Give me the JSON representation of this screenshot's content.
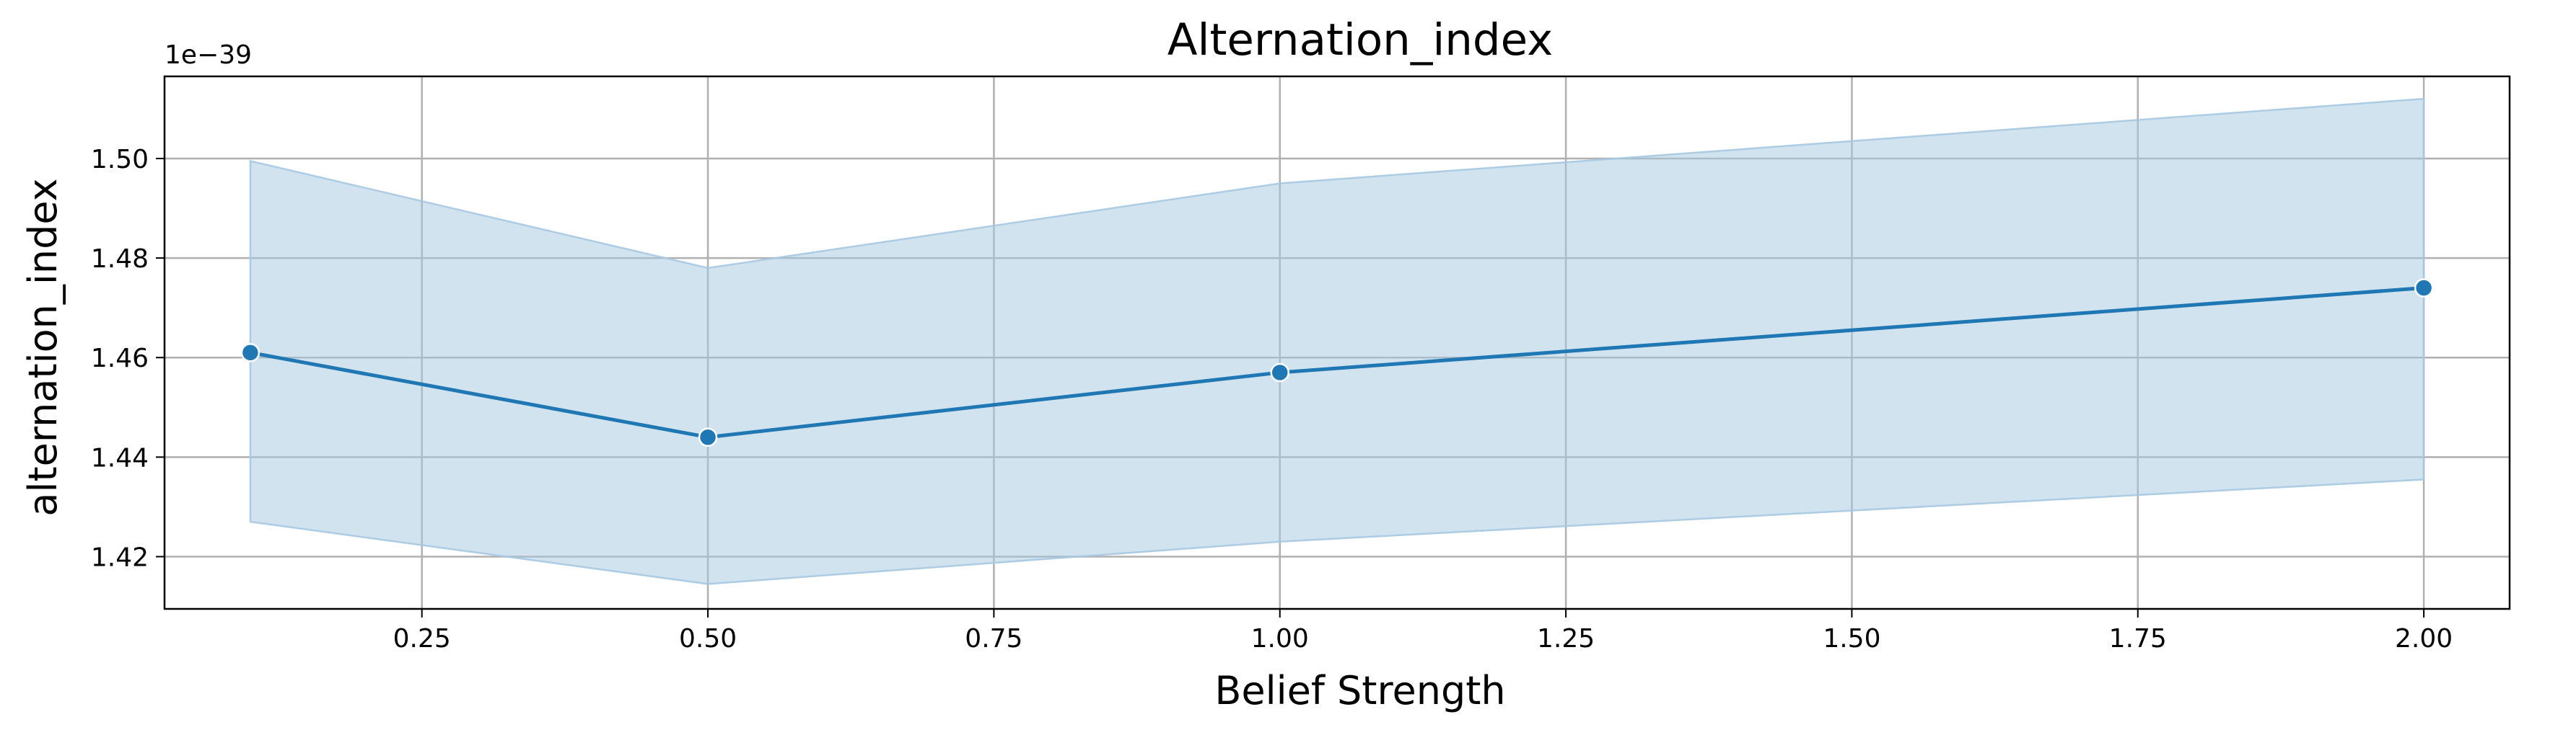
{
  "chart_data": {
    "type": "line",
    "title": "Alternation_index",
    "xlabel": "Belief Strength",
    "ylabel": "alternation_index",
    "y_offset_label": "1e−39",
    "xlim": [
      0.025,
      2.075
    ],
    "ylim": [
      1.4095,
      1.5165
    ],
    "x_ticks": [
      0.25,
      0.5,
      0.75,
      1.0,
      1.25,
      1.5,
      1.75,
      2.0
    ],
    "x_tick_labels": [
      "0.25",
      "0.50",
      "0.75",
      "1.00",
      "1.25",
      "1.50",
      "1.75",
      "2.00"
    ],
    "y_ticks": [
      1.42,
      1.44,
      1.46,
      1.48,
      1.5
    ],
    "y_tick_labels": [
      "1.42",
      "1.44",
      "1.46",
      "1.48",
      "1.50"
    ],
    "grid": true,
    "series": [
      {
        "x": [
          0.1,
          0.5,
          1.0,
          2.0
        ],
        "y": [
          1.461,
          1.444,
          1.457,
          1.474
        ],
        "ci_lower": [
          1.427,
          1.4145,
          1.423,
          1.4355
        ],
        "ci_upper": [
          1.4995,
          1.478,
          1.495,
          1.512
        ],
        "color": "#1f77b4",
        "band_color": "#a6c8e1"
      }
    ]
  }
}
